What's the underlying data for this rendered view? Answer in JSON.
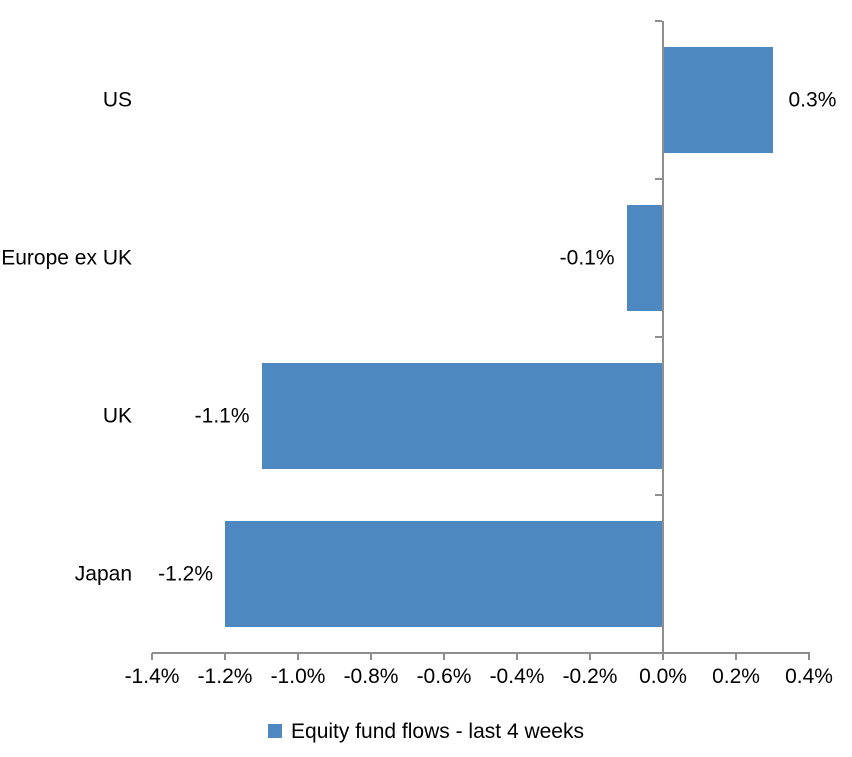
{
  "chart_data": {
    "type": "bar",
    "orientation": "horizontal",
    "title": "",
    "categories": [
      "US",
      "Europe ex UK",
      "UK",
      "Japan"
    ],
    "series": [
      {
        "name": "Equity fund flows - last 4 weeks",
        "values": [
          0.3,
          -0.1,
          -1.1,
          -1.2
        ],
        "labels": [
          "0.3%",
          "-0.1%",
          "-1.1%",
          "-1.2%"
        ]
      }
    ],
    "x_axis": {
      "min": -1.4,
      "max": 0.4,
      "step": 0.2,
      "tick_values": [
        -1.4,
        -1.2,
        -1.0,
        -0.8,
        -0.6,
        -0.4,
        -0.2,
        0.0,
        0.2,
        0.4
      ],
      "tick_labels": [
        "-1.4%",
        "-1.2%",
        "-1.0%",
        "-0.8%",
        "-0.6%",
        "-0.4%",
        "-0.2%",
        "0.0%",
        "0.2%",
        "0.4%"
      ]
    },
    "grid": false,
    "data_label_position": "outside-end",
    "legend": {
      "position": "bottom-center",
      "entries": [
        "Equity fund flows - last 4 weeks"
      ]
    },
    "colors": {
      "bar": "#4E88C0",
      "axis": "#8E8E8E",
      "text": "#000000",
      "background": "#FFFFFF"
    }
  }
}
